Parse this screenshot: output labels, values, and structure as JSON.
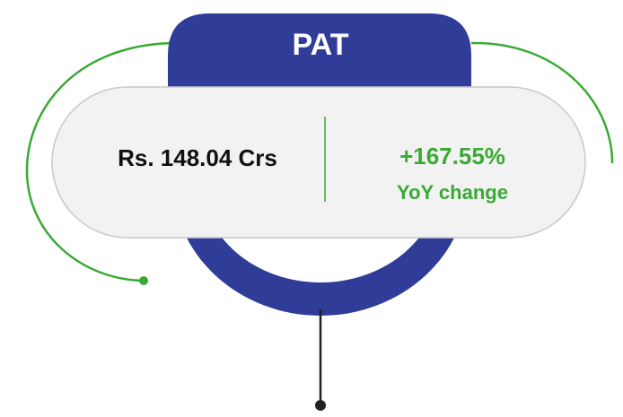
{
  "title": "PAT",
  "value": "Rs. 148.04 Crs",
  "change": "+167.55%",
  "change_label": "YoY change"
}
